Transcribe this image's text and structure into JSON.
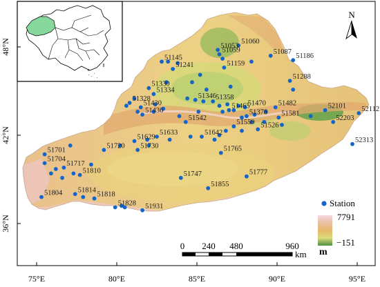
{
  "map": {
    "lat_labels": [
      "48°N",
      "42°N",
      "36°N"
    ],
    "lon_labels": [
      "75°E",
      "80°E",
      "85°E",
      "90°E",
      "95°E"
    ],
    "north_label": "N",
    "legend": {
      "station_label": "Station",
      "elev_max": "7791",
      "elev_min": "−151",
      "elev_unit": "m"
    },
    "scale": {
      "ticks": [
        "0",
        "240",
        "480",
        "960"
      ],
      "unit": "km"
    },
    "colors": {
      "station": "#1565c8",
      "high": "#f4c8d2",
      "mid": "#e7c184",
      "low": "#5f9c4a",
      "inset_highlight": "#86d89d"
    },
    "stations": [
      {
        "id": "51060",
        "lon": 87.6,
        "lat": 48.1
      },
      {
        "id": "51053",
        "lon": 86.3,
        "lat": 47.8
      },
      {
        "id": "51087",
        "lon": 89.6,
        "lat": 47.4
      },
      {
        "id": "51186",
        "lon": 91.0,
        "lat": 47.1
      },
      {
        "id": "51059",
        "lon": 86.4,
        "lat": 47.5
      },
      {
        "id": "51145",
        "lon": 82.8,
        "lat": 47.0
      },
      {
        "id": "51241",
        "lon": 83.5,
        "lat": 46.5
      },
      {
        "id": "51159",
        "lon": 86.7,
        "lat": 46.6
      },
      {
        "id": "51288",
        "lon": 90.8,
        "lat": 45.7
      },
      {
        "id": "51330",
        "lon": 82.0,
        "lat": 45.2
      },
      {
        "id": "51334",
        "lon": 82.3,
        "lat": 44.8
      },
      {
        "id": "51346",
        "lon": 84.9,
        "lat": 44.4
      },
      {
        "id": "51358",
        "lon": 86.0,
        "lat": 44.3
      },
      {
        "id": "51328",
        "lon": 80.8,
        "lat": 44.2
      },
      {
        "id": "51430",
        "lon": 81.5,
        "lat": 43.9
      },
      {
        "id": "51470",
        "lon": 88.0,
        "lat": 43.9
      },
      {
        "id": "51482",
        "lon": 89.9,
        "lat": 43.9
      },
      {
        "id": "52101",
        "lon": 93.0,
        "lat": 43.7
      },
      {
        "id": "52112",
        "lon": 95.1,
        "lat": 43.5
      },
      {
        "id": "51436",
        "lon": 81.6,
        "lat": 43.4
      },
      {
        "id": "51465",
        "lon": 87.0,
        "lat": 43.7
      },
      {
        "id": "51378",
        "lon": 88.1,
        "lat": 43.3
      },
      {
        "id": "51581",
        "lon": 90.1,
        "lat": 43.2
      },
      {
        "id": "52203",
        "lon": 93.5,
        "lat": 42.9
      },
      {
        "id": "51542",
        "lon": 84.3,
        "lat": 42.9
      },
      {
        "id": "51559",
        "lon": 87.3,
        "lat": 42.6
      },
      {
        "id": "51526",
        "lon": 88.8,
        "lat": 42.4
      },
      {
        "id": "51633",
        "lon": 82.5,
        "lat": 41.9
      },
      {
        "id": "51642",
        "lon": 85.3,
        "lat": 41.9
      },
      {
        "id": "52313",
        "lon": 94.7,
        "lat": 41.4
      },
      {
        "id": "51629",
        "lon": 81.1,
        "lat": 41.6
      },
      {
        "id": "51720",
        "lon": 79.2,
        "lat": 41.0
      },
      {
        "id": "51730",
        "lon": 81.3,
        "lat": 41.0
      },
      {
        "id": "51765",
        "lon": 86.5,
        "lat": 40.8
      },
      {
        "id": "51701",
        "lon": 75.5,
        "lat": 40.7
      },
      {
        "id": "51704",
        "lon": 75.5,
        "lat": 40.1
      },
      {
        "id": "51717",
        "lon": 76.7,
        "lat": 39.8
      },
      {
        "id": "51810",
        "lon": 77.7,
        "lat": 39.3
      },
      {
        "id": "51747",
        "lon": 84.0,
        "lat": 39.1
      },
      {
        "id": "51777",
        "lon": 88.1,
        "lat": 39.2
      },
      {
        "id": "51855",
        "lon": 85.7,
        "lat": 38.4
      },
      {
        "id": "51804",
        "lon": 75.3,
        "lat": 37.8
      },
      {
        "id": "51814",
        "lon": 77.4,
        "lat": 38.0
      },
      {
        "id": "51818",
        "lon": 78.6,
        "lat": 37.7
      },
      {
        "id": "51828",
        "lon": 79.9,
        "lat": 37.1
      },
      {
        "id": "51931",
        "lon": 81.6,
        "lat": 36.9
      }
    ],
    "extra_points": [
      {
        "lon": 86.6,
        "lat": 47.2
      },
      {
        "lon": 85.6,
        "lat": 45.1
      },
      {
        "lon": 83.2,
        "lat": 47.0
      },
      {
        "lon": 83.8,
        "lat": 46.9
      },
      {
        "lon": 83.1,
        "lat": 45.6
      },
      {
        "lon": 87.1,
        "lat": 45.3
      },
      {
        "lon": 84.4,
        "lat": 44.5
      },
      {
        "lon": 85.4,
        "lat": 44.3
      },
      {
        "lon": 86.4,
        "lat": 44.0
      },
      {
        "lon": 86.9,
        "lat": 44.1
      },
      {
        "lon": 87.6,
        "lat": 44.0
      },
      {
        "lon": 87.3,
        "lat": 43.7
      },
      {
        "lon": 86.6,
        "lat": 43.6
      },
      {
        "lon": 87.8,
        "lat": 43.2
      },
      {
        "lon": 88.6,
        "lat": 43.4
      },
      {
        "lon": 89.3,
        "lat": 43.6
      },
      {
        "lon": 89.2,
        "lat": 42.9
      },
      {
        "lon": 88.4,
        "lat": 42.9
      },
      {
        "lon": 87.8,
        "lat": 42.3
      },
      {
        "lon": 86.8,
        "lat": 42.3
      },
      {
        "lon": 86.4,
        "lat": 42.0
      },
      {
        "lon": 86.1,
        "lat": 41.7
      },
      {
        "lon": 84.6,
        "lat": 41.9
      },
      {
        "lon": 83.3,
        "lat": 41.7
      },
      {
        "lon": 82.0,
        "lat": 41.3
      },
      {
        "lon": 81.9,
        "lat": 41.7
      },
      {
        "lon": 80.2,
        "lat": 41.3
      },
      {
        "lon": 80.6,
        "lat": 44.0
      },
      {
        "lon": 81.1,
        "lat": 44.5
      },
      {
        "lon": 81.3,
        "lat": 43.6
      },
      {
        "lon": 82.3,
        "lat": 43.6
      },
      {
        "lon": 82.9,
        "lat": 43.8
      },
      {
        "lon": 83.9,
        "lat": 43.3
      },
      {
        "lon": 85.1,
        "lat": 43.6
      },
      {
        "lon": 77.1,
        "lat": 41.3
      },
      {
        "lon": 76.2,
        "lat": 39.7
      },
      {
        "lon": 75.9,
        "lat": 39.4
      },
      {
        "lon": 76.6,
        "lat": 39.1
      },
      {
        "lon": 77.3,
        "lat": 39.4
      },
      {
        "lon": 78.4,
        "lat": 40.0
      },
      {
        "lon": 77.9,
        "lat": 37.8
      },
      {
        "lon": 80.5,
        "lat": 37.1
      },
      {
        "lon": 80.3,
        "lat": 37.2
      },
      {
        "lon": 92.1,
        "lat": 43.3
      },
      {
        "lon": 90.3,
        "lat": 42.7
      },
      {
        "lon": 91.0,
        "lat": 45.1
      },
      {
        "lon": 88.4,
        "lat": 47.0
      },
      {
        "lon": 84.7,
        "lat": 45.6
      },
      {
        "lon": 85.2,
        "lat": 46.1
      },
      {
        "lon": 82.4,
        "lat": 44.1
      }
    ]
  }
}
